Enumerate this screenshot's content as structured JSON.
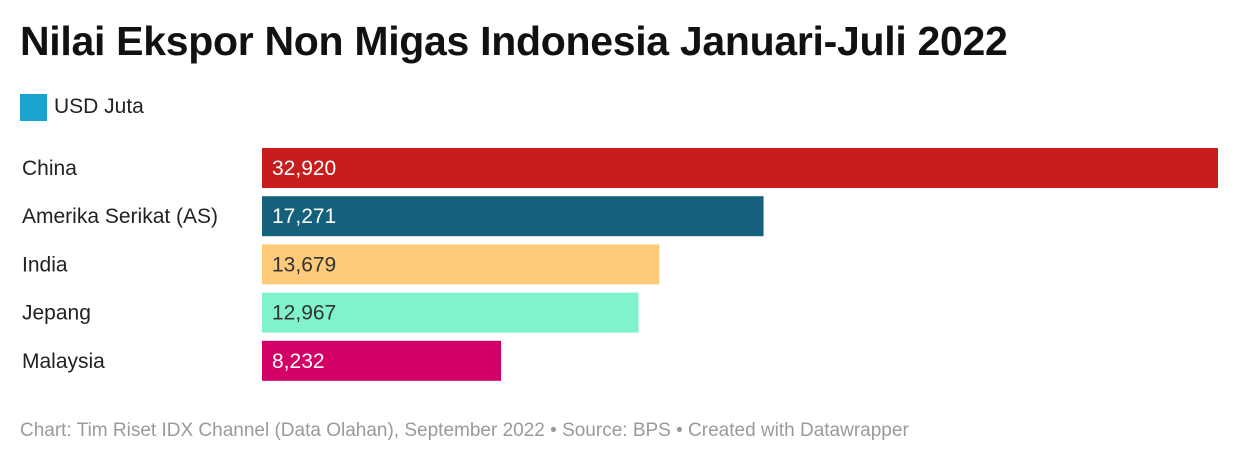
{
  "title": "Nilai Ekspor Non Migas Indonesia Januari-Juli 2022",
  "legend": {
    "label": "USD Juta",
    "color": "#1aa2d1"
  },
  "chart_data": {
    "type": "bar",
    "orientation": "horizontal",
    "categories": [
      "China",
      "Amerika Serikat (AS)",
      "India",
      "Jepang",
      "Malaysia"
    ],
    "values": [
      32920,
      17271,
      13679,
      12967,
      8232
    ],
    "value_labels": [
      "32,920",
      "17,271",
      "13,679",
      "12,967",
      "8,232"
    ],
    "colors": [
      "#c71e1d",
      "#15607a",
      "#fdca7a",
      "#81f3cc",
      "#d30066"
    ],
    "label_colors": [
      "#ffffff",
      "#ffffff",
      "#333333",
      "#333333",
      "#ffffff"
    ],
    "series": [
      {
        "name": "USD Juta",
        "values": [
          32920,
          17271,
          13679,
          12967,
          8232
        ]
      }
    ],
    "xlim": [
      0,
      32920
    ],
    "grid": false,
    "legend_position": "top-left"
  },
  "footer": "Chart: Tim Riset IDX Channel (Data Olahan), September 2022 • Source: BPS • Created with Datawrapper"
}
